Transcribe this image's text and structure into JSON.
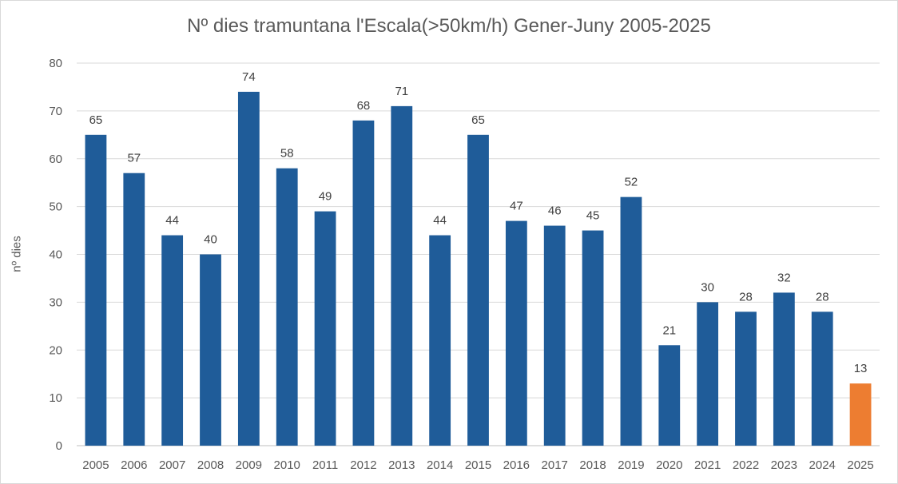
{
  "chart_data": {
    "type": "bar",
    "title": "Nº dies tramuntana l'Escala(>50km/h)  Gener-Juny 2005-2025",
    "xlabel": "",
    "ylabel": "nº dies",
    "ylim": [
      0,
      80
    ],
    "yticks": [
      "0",
      "10",
      "20",
      "30",
      "40",
      "50",
      "60",
      "70",
      "80"
    ],
    "grid": true,
    "categories": [
      "2005",
      "2006",
      "2007",
      "2008",
      "2009",
      "2010",
      "2011",
      "2012",
      "2013",
      "2014",
      "2015",
      "2016",
      "2017",
      "2018",
      "2019",
      "2020",
      "2021",
      "2022",
      "2023",
      "2024",
      "2025"
    ],
    "values": [
      65,
      57,
      44,
      40,
      74,
      58,
      49,
      68,
      71,
      44,
      65,
      47,
      46,
      45,
      52,
      21,
      30,
      28,
      32,
      28,
      13
    ],
    "colors": {
      "default": "#1f5c99",
      "highlight": "#ed7d31",
      "highlight_category": "2025",
      "grid": "#d9d9d9",
      "axis": "#bfbfbf"
    }
  }
}
